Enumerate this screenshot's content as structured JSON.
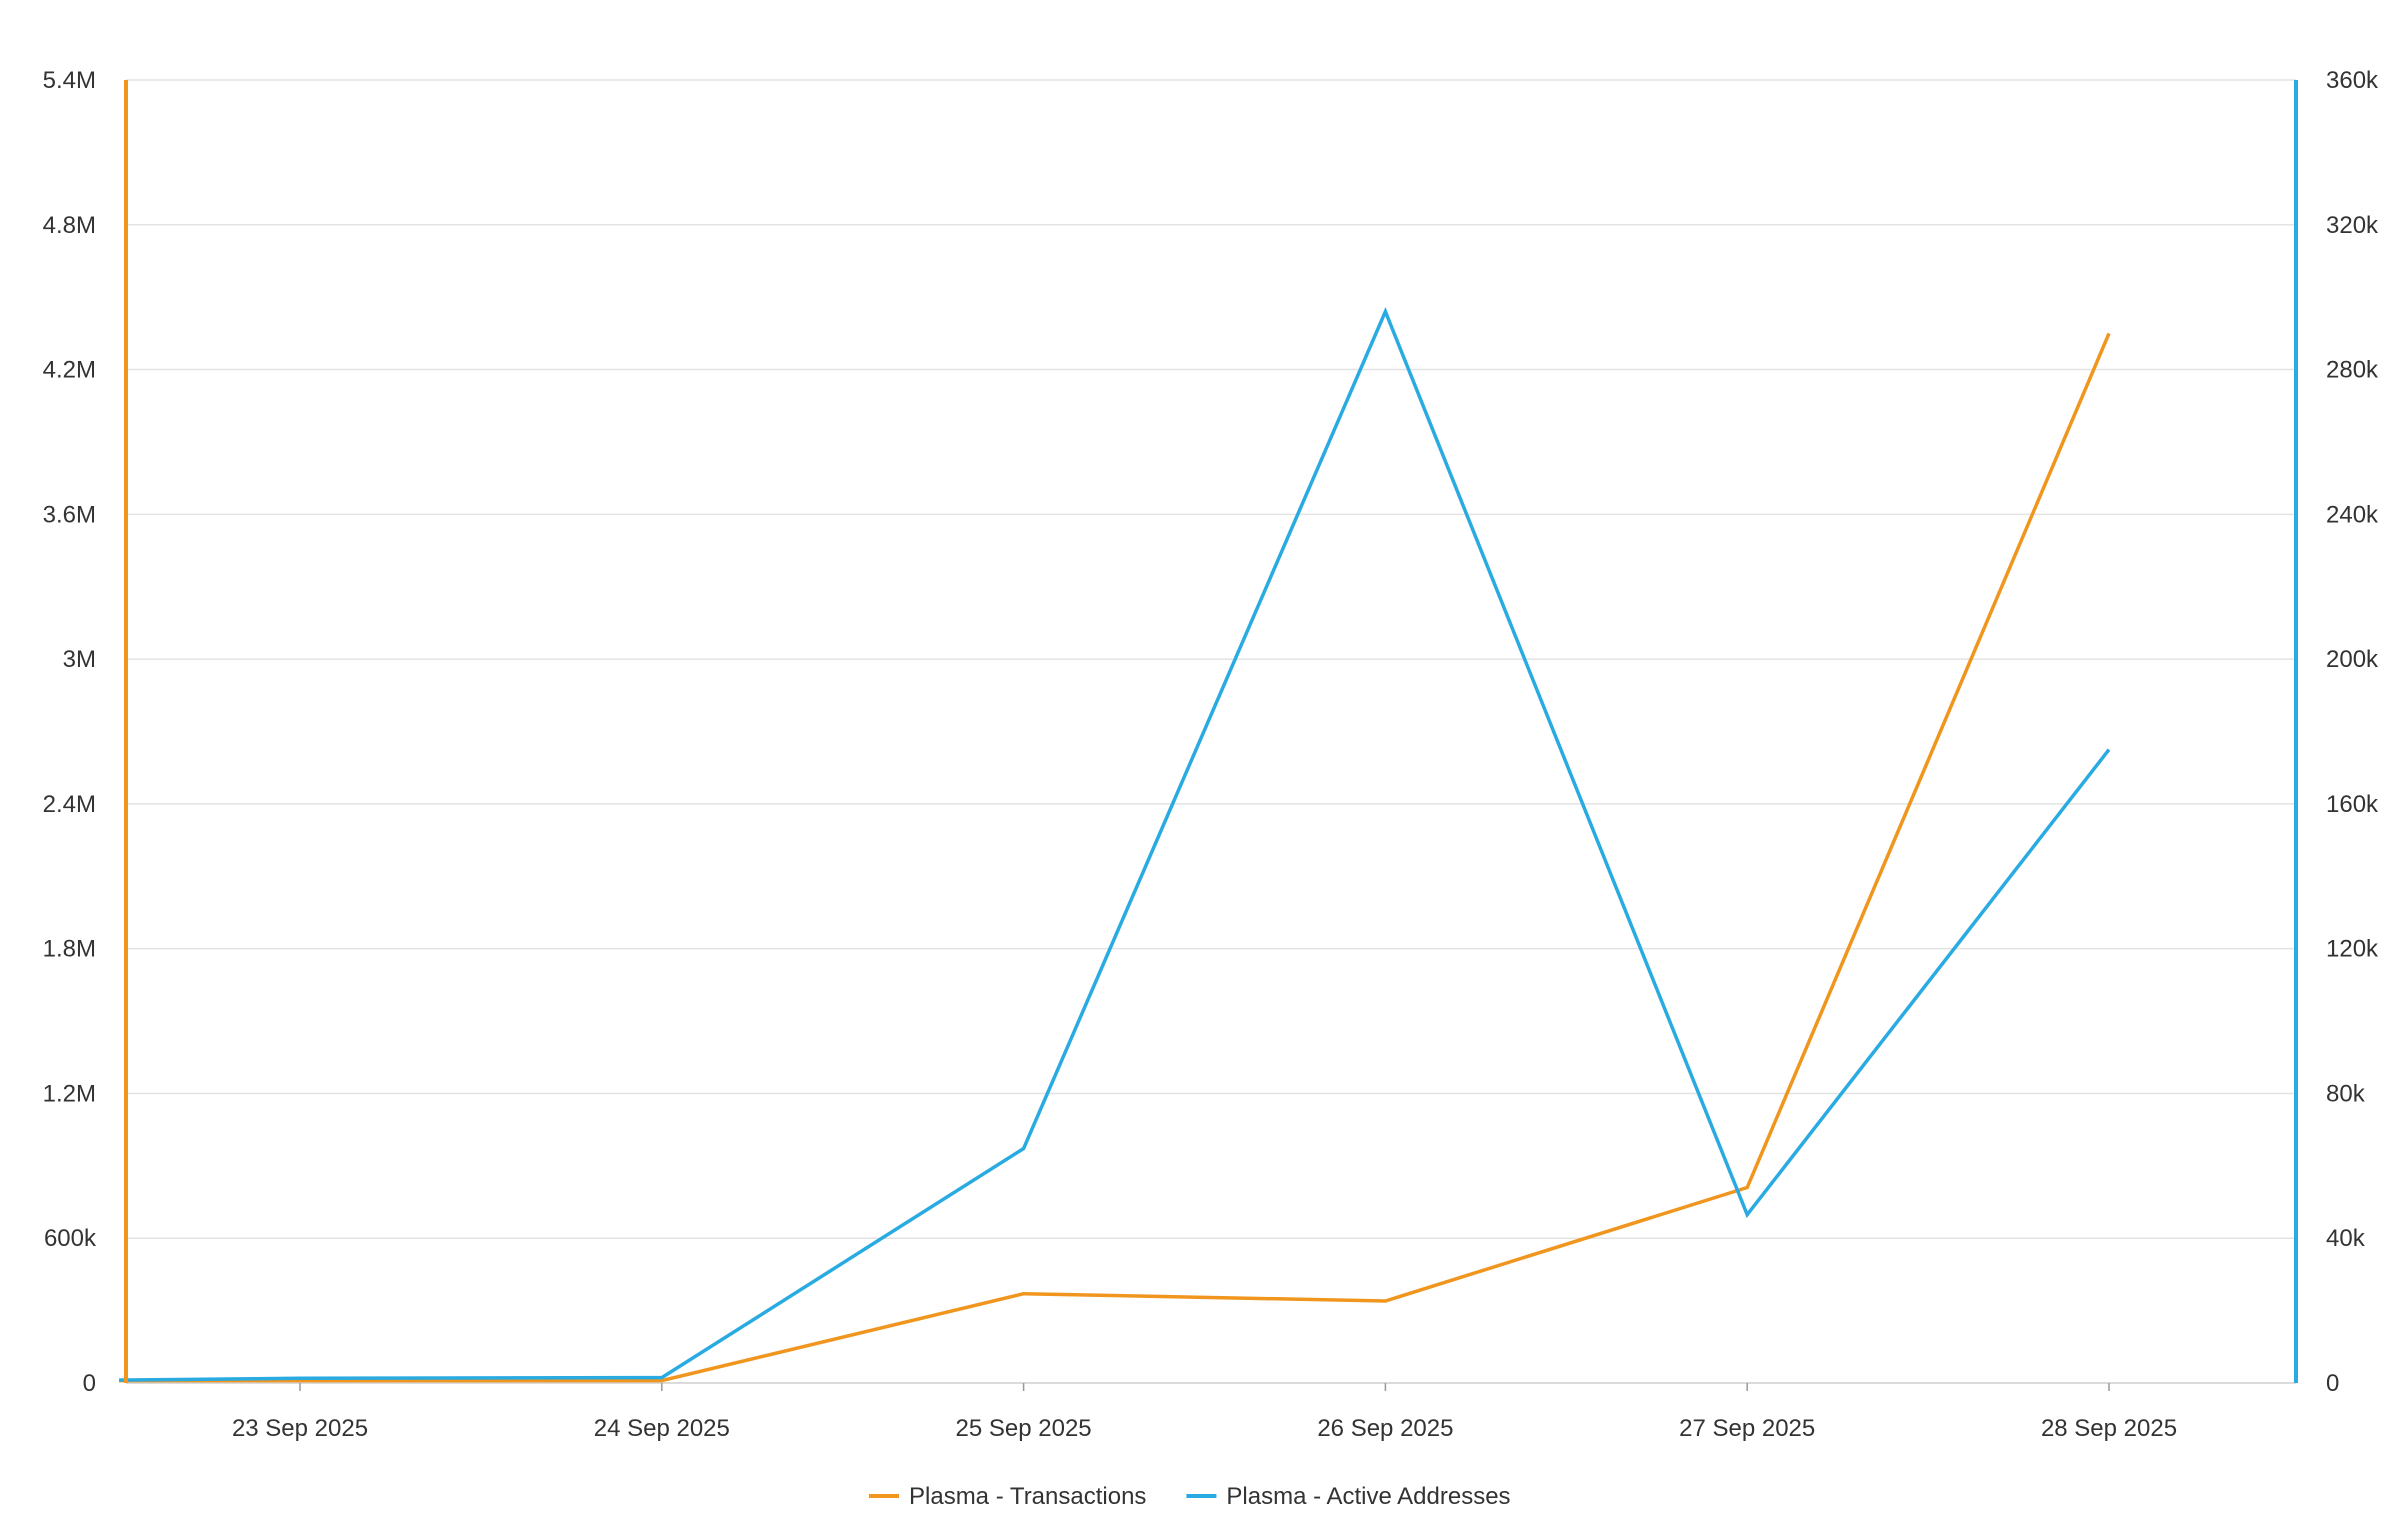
{
  "chart_data": {
    "type": "line",
    "title": "",
    "xlabel": "",
    "ylabel": "",
    "x": [
      "23 Sep 2025",
      "24 Sep 2025",
      "25 Sep 2025",
      "26 Sep 2025",
      "27 Sep 2025",
      "28 Sep 2025"
    ],
    "y_left": {
      "range": [
        0,
        5400000
      ],
      "ticks": [
        "0",
        "600k",
        "1.2M",
        "1.8M",
        "2.4M",
        "3M",
        "3.6M",
        "4.2M",
        "4.8M",
        "5.4M"
      ],
      "axis_color": "#F0961E"
    },
    "y_right": {
      "range": [
        0,
        360000
      ],
      "ticks": [
        "0",
        "40k",
        "80k",
        "120k",
        "160k",
        "200k",
        "240k",
        "280k",
        "320k",
        "360k"
      ],
      "axis_color": "#29ABE2"
    },
    "grid": true,
    "legend_position": "bottom-center",
    "series": [
      {
        "name": "Plasma - Transactions",
        "axis": "left",
        "color": "#F0961E",
        "points": [
          [
            "22 Sep 2025 12:00",
            10000
          ],
          [
            "23 Sep 2025",
            10000
          ],
          [
            "24 Sep 2025",
            10000
          ],
          [
            "25 Sep 2025",
            370000
          ],
          [
            "26 Sep 2025",
            340000
          ],
          [
            "27 Sep 2025",
            810000
          ],
          [
            "28 Sep 2025",
            4350000
          ]
        ]
      },
      {
        "name": "Plasma - Active Addresses",
        "axis": "right",
        "color": "#29ABE2",
        "points": [
          [
            "22 Sep 2025 12:00",
            800
          ],
          [
            "23 Sep 2025",
            1300
          ],
          [
            "24 Sep 2025",
            1500
          ],
          [
            "25 Sep 2025",
            64800
          ],
          [
            "26 Sep 2025",
            296000
          ],
          [
            "27 Sep 2025",
            46500
          ],
          [
            "28 Sep 2025",
            175000
          ]
        ]
      }
    ]
  }
}
